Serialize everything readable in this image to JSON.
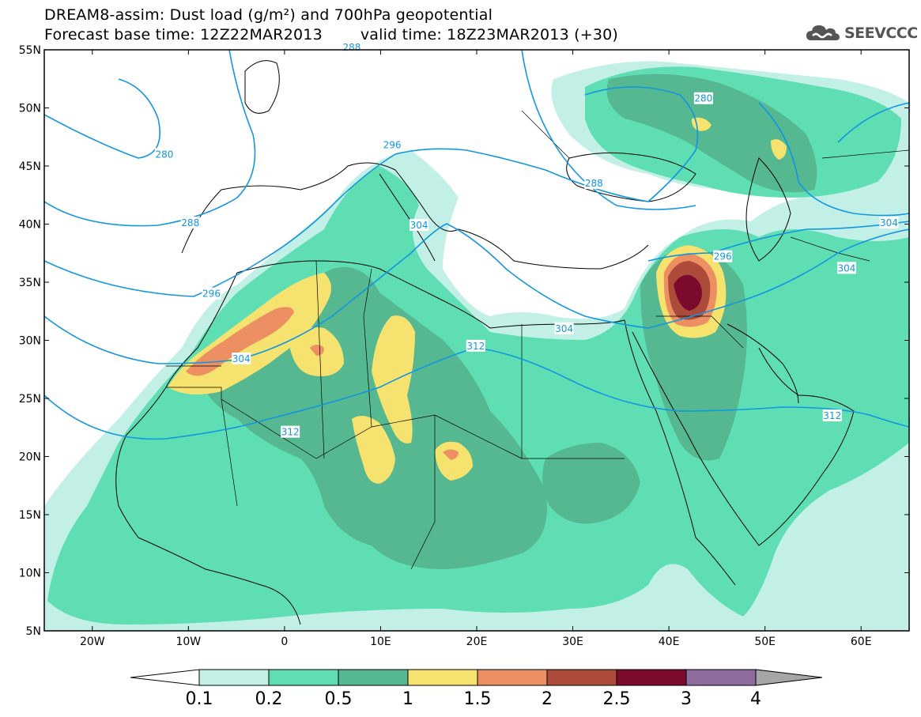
{
  "title": {
    "line1": "DREAM8-assim: Dust load (g/m²) and 700hPa geopotential",
    "line2_base": "Forecast base time: 12Z22MAR2013",
    "line2_valid": "valid time: 18Z23MAR2013 (+30)"
  },
  "logo": {
    "text": "SEEVCCC",
    "icon": "cloud-icon"
  },
  "map": {
    "lon_range": [
      -25,
      65
    ],
    "lat_range": [
      5,
      55
    ],
    "lon_ticks": [
      "20W",
      "10W",
      "0",
      "10E",
      "20E",
      "30E",
      "40E",
      "50E",
      "60E"
    ],
    "lon_tick_values": [
      -20,
      -10,
      0,
      10,
      20,
      30,
      40,
      50,
      60
    ],
    "lat_ticks": [
      "5N",
      "10N",
      "15N",
      "20N",
      "25N",
      "30N",
      "35N",
      "40N",
      "45N",
      "50N",
      "55N"
    ],
    "lat_tick_values": [
      5,
      10,
      15,
      20,
      25,
      30,
      35,
      40,
      45,
      50,
      55
    ],
    "contour_labels": [
      {
        "text": "280",
        "lon": -12.5,
        "lat": 46.0
      },
      {
        "text": "280",
        "lon": 43.6,
        "lat": 50.8
      },
      {
        "text": "288",
        "lon": -9.8,
        "lat": 40.1
      },
      {
        "text": "288",
        "lon": 32.2,
        "lat": 43.5
      },
      {
        "text": "296",
        "lon": -7.6,
        "lat": 34.0
      },
      {
        "text": "296",
        "lon": 11.2,
        "lat": 46.8
      },
      {
        "text": "296",
        "lon": 45.6,
        "lat": 37.2
      },
      {
        "text": "304",
        "lon": -4.5,
        "lat": 28.4
      },
      {
        "text": "304",
        "lon": 14.0,
        "lat": 39.9
      },
      {
        "text": "304",
        "lon": 29.1,
        "lat": 31.0
      },
      {
        "text": "304",
        "lon": 62.9,
        "lat": 40.1
      },
      {
        "text": "304",
        "lon": 58.5,
        "lat": 36.2
      },
      {
        "text": "312",
        "lon": 0.6,
        "lat": 22.1
      },
      {
        "text": "312",
        "lon": 19.9,
        "lat": 29.5
      },
      {
        "text": "312",
        "lon": 57.0,
        "lat": 23.5
      },
      {
        "text": "288",
        "lon": 7.0,
        "lat": 55.2
      }
    ]
  },
  "colorbar": {
    "levels": [
      "0.1",
      "0.2",
      "0.5",
      "1",
      "1.5",
      "2",
      "2.5",
      "3",
      "4"
    ],
    "colors": [
      "#fffffe",
      "#c2f0e6",
      "#5fdeb4",
      "#56b890",
      "#f6e26e",
      "#ec8f63",
      "#ad4b3a",
      "#7c0a2c",
      "#8e6d9e",
      "#a6a6a6"
    ]
  },
  "colors": {
    "coast": "#000000",
    "geopotential": "#1296e0",
    "dust_low": "#c2f0e6",
    "dust_mid": "#5fdeb4",
    "dust_high": "#56b890",
    "dust_1": "#f6e26e",
    "dust_15": "#ec8f63",
    "dust_2": "#ad4b3a",
    "dust_25": "#7c0a2c"
  }
}
